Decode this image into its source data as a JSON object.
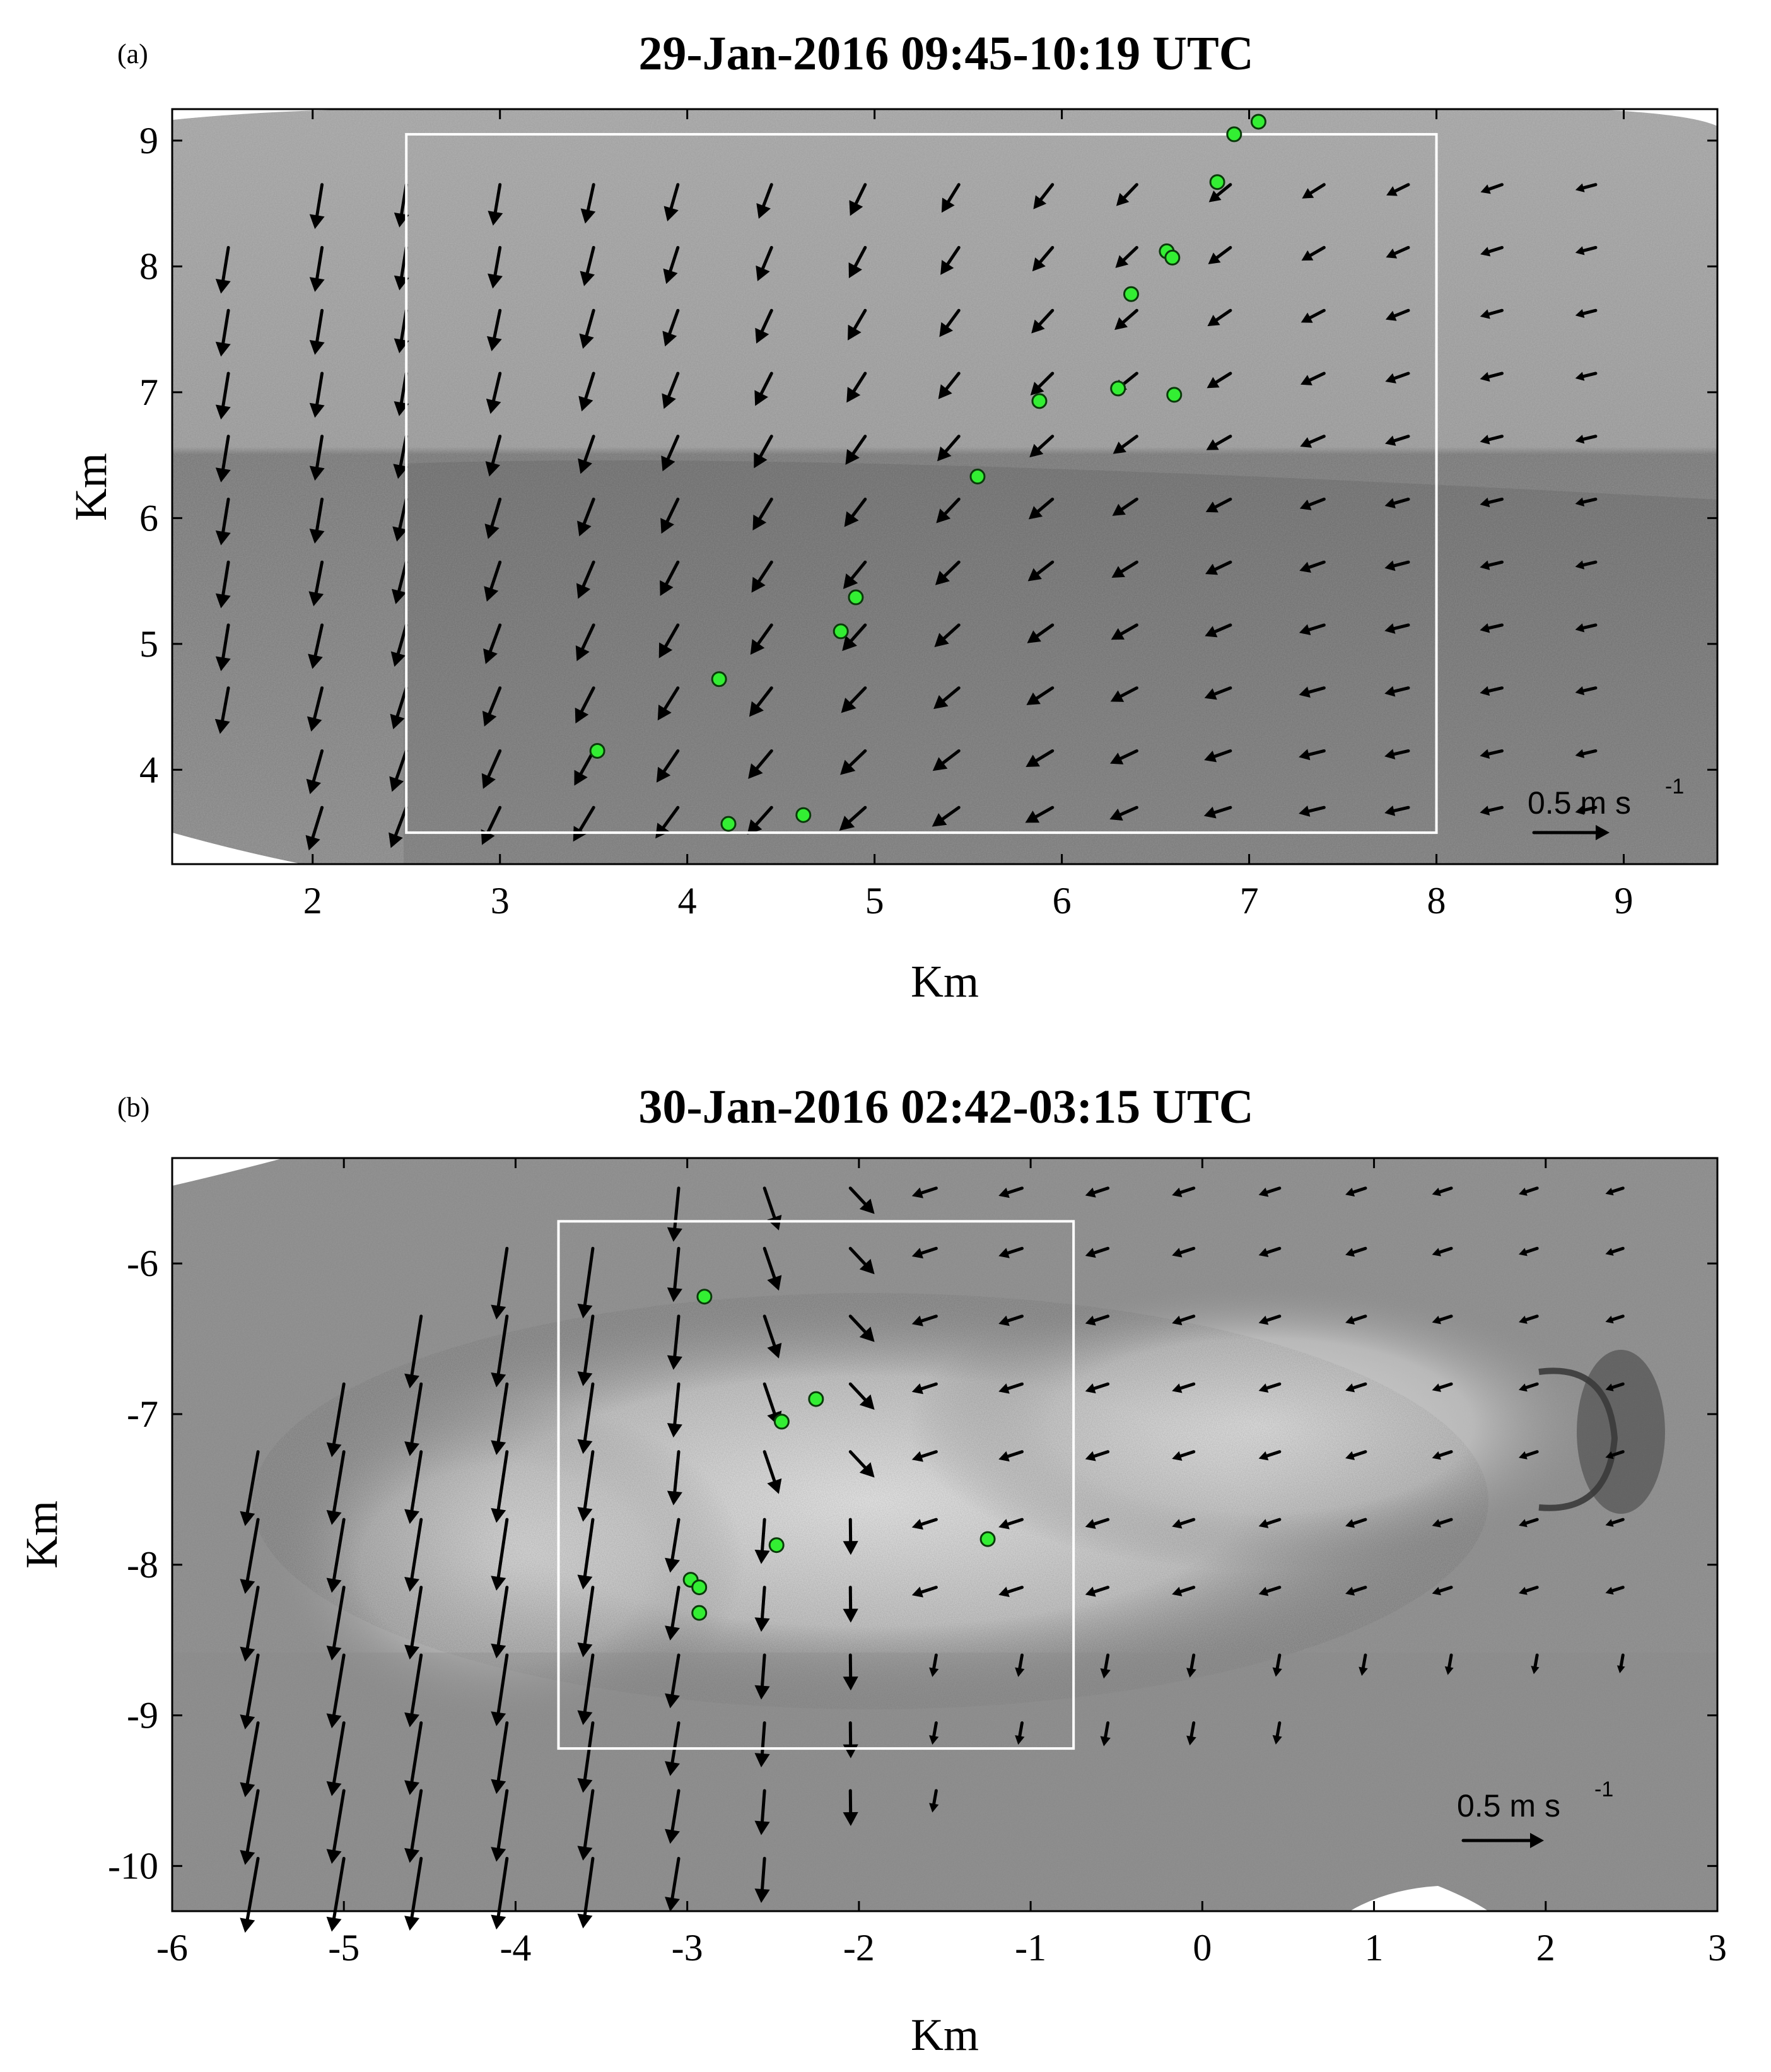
{
  "colors": {
    "arrow": "#000000",
    "marker_fill": "#33ee33",
    "marker_edge": "#0a3a0a",
    "box": "#ffffff"
  },
  "chart_data": [
    {
      "type": "quiver",
      "panel_label": "(a)",
      "title": "29-Jan-2016  09:45-10:19 UTC",
      "xlabel": "Km",
      "ylabel": "Km",
      "xlim": [
        1.25,
        9.5
      ],
      "ylim": [
        3.25,
        9.25
      ],
      "xticks": [
        2,
        3,
        4,
        5,
        6,
        7,
        8,
        9
      ],
      "yticks": [
        4,
        5,
        6,
        7,
        8,
        9
      ],
      "background": "grayscale satellite image, lighter upper half, darker lower half",
      "box": {
        "x": [
          2.5,
          8.0
        ],
        "y": [
          3.5,
          9.05
        ]
      },
      "scale_arrow": {
        "label": "0.5 m s",
        "superscript": "-1",
        "magnitude": 0.5
      },
      "markers": [
        [
          7.05,
          9.15
        ],
        [
          6.92,
          9.05
        ],
        [
          6.83,
          8.67
        ],
        [
          6.56,
          8.12
        ],
        [
          6.59,
          8.07
        ],
        [
          6.37,
          7.78
        ],
        [
          6.3,
          7.03
        ],
        [
          6.6,
          6.98
        ],
        [
          5.88,
          6.93
        ],
        [
          5.55,
          6.33
        ],
        [
          4.9,
          5.37
        ],
        [
          4.82,
          5.1
        ],
        [
          4.17,
          4.72
        ],
        [
          3.52,
          4.15
        ],
        [
          4.62,
          3.64
        ],
        [
          4.22,
          3.57
        ]
      ],
      "field_rows": {
        "y": [
          8.0,
          7.5,
          7.0,
          6.5,
          6.0,
          5.5,
          5.0,
          4.5,
          4.0,
          3.5
        ],
        "columns": [
          {
            "x": 1.6,
            "y_range": [
              4.0,
              8.0
            ],
            "u": -0.08,
            "v": -0.45
          },
          {
            "x": 2.05,
            "y_range": [
              3.5,
              8.5
            ],
            "u": -0.12,
            "v": -0.52
          },
          {
            "x": 2.5,
            "y_range": [
              3.5,
              8.5
            ],
            "u": -0.13,
            "v": -0.58
          },
          {
            "x": 3.0,
            "y_range": [
              3.5,
              8.5
            ],
            "u": -0.13,
            "v": -0.6
          },
          {
            "x": 3.5,
            "y_range": [
              3.5,
              8.5
            ],
            "u": -0.12,
            "v": -0.6
          },
          {
            "x": 3.9,
            "y_range": [
              3.5,
              8.5
            ],
            "u": -0.1,
            "v": -0.55
          }
        ]
      },
      "field_note": "arrows turn from nearly southward (west) to south-westward (east) and shorten toward the east"
    },
    {
      "type": "quiver",
      "panel_label": "(b)",
      "title": "30-Jan-2016  02:42-03:15 UTC",
      "xlabel": "Km",
      "ylabel": "Km",
      "xlim": [
        -6,
        3
      ],
      "ylim": [
        -10.3,
        -5.3
      ],
      "xticks": [
        -6,
        -5,
        -4,
        -3,
        -2,
        -1,
        0,
        1,
        2,
        3
      ],
      "yticks": [
        -10,
        -9,
        -8,
        -7,
        -6
      ],
      "background": "grayscale satellite image, bright cloud band across the middle",
      "box": {
        "x": [
          -3.75,
          -0.75
        ],
        "y": [
          -9.22,
          -5.72
        ]
      },
      "scale_arrow": {
        "label": "0.5 m s",
        "superscript": "-1",
        "magnitude": 0.5
      },
      "markers": [
        [
          -2.9,
          -6.22
        ],
        [
          -2.25,
          -6.9
        ],
        [
          -2.45,
          -7.05
        ],
        [
          -2.48,
          -7.87
        ],
        [
          -1.25,
          -7.83
        ],
        [
          -2.98,
          -8.1
        ],
        [
          -2.93,
          -8.15
        ],
        [
          -2.93,
          -8.32
        ]
      ],
      "field_note": "strong southward arrows in the west, weakening to short south-westward arrows in the east"
    }
  ]
}
